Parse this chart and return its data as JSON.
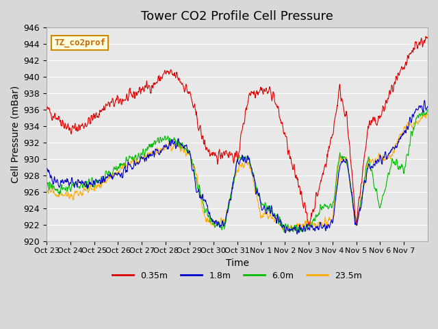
{
  "title": "Tower CO2 Profile Cell Pressure",
  "ylabel": "Cell Pressure (mBar)",
  "xlabel": "Time",
  "ylim": [
    920,
    946
  ],
  "yticks": [
    920,
    922,
    924,
    926,
    928,
    930,
    932,
    934,
    936,
    938,
    940,
    942,
    944,
    946
  ],
  "xtick_labels": [
    "Oct 23",
    "Oct 24",
    "Oct 25",
    "Oct 26",
    "Oct 27",
    "Oct 28",
    "Oct 29",
    "Oct 30",
    "Oct 31",
    "Nov 1",
    "Nov 2",
    "Nov 3",
    "Nov 4",
    "Nov 5",
    "Nov 6",
    "Nov 7"
  ],
  "legend_label": "TZ_co2prof",
  "series_labels": [
    "0.35m",
    "1.8m",
    "6.0m",
    "23.5m"
  ],
  "series_colors": [
    "#dd0000",
    "#0000cc",
    "#00bb00",
    "#ffaa00"
  ],
  "title_fontsize": 13,
  "axis_fontsize": 10,
  "tick_fontsize": 9
}
